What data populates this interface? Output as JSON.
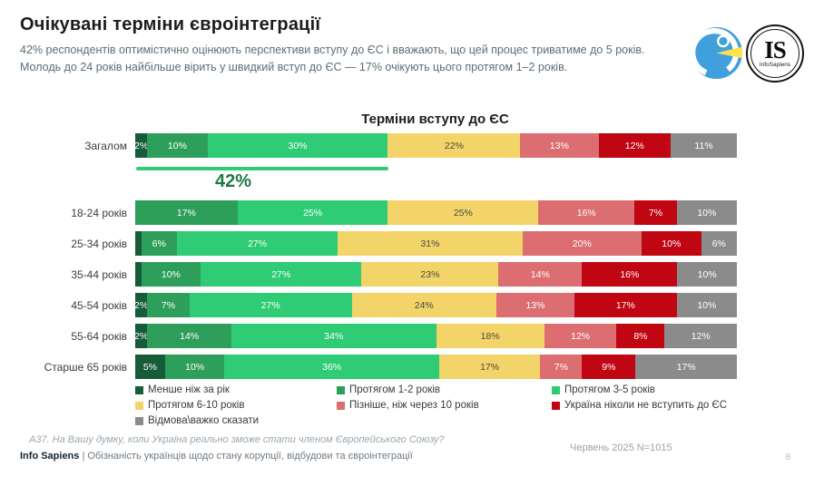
{
  "header": {
    "title": "Очікувані терміни євроінтеграції",
    "subtitle": "42% респондентів оптимістично оцінюють перспективи вступу до ЄС і вважають, що цей процес триватиме до 5 років. Молодь до 24 років найбільше вірить у швидкий вступ до ЄС — 17% очікують цього протягом 1–2 років."
  },
  "logos": {
    "is_initials": "IS",
    "is_name": "InfoSapiens"
  },
  "chart_data": {
    "type": "bar",
    "stacked": true,
    "orientation": "horizontal",
    "title": "Терміни вступу до ЄС",
    "unit": "%",
    "xlim": [
      0,
      100
    ],
    "legend_position": "bottom",
    "label_min_value": 2,
    "categories": [
      "Загалом",
      "18-24 років",
      "25-34 років",
      "35-44 років",
      "45-54 років",
      "55-64 років",
      "Старше 65 років"
    ],
    "series": [
      {
        "name": "Менше ніж за рік",
        "color": "#175C38",
        "label_color": "#ffffff",
        "values": [
          2,
          0,
          1,
          1,
          2,
          2,
          5
        ]
      },
      {
        "name": "Протягом 1-2 років",
        "color": "#2E9E5B",
        "label_color": "#ffffff",
        "values": [
          10,
          17,
          6,
          10,
          7,
          14,
          10
        ]
      },
      {
        "name": "Протягом 3-5 років",
        "color": "#2FCC75",
        "label_color": "#ffffff",
        "values": [
          30,
          25,
          27,
          27,
          27,
          34,
          36
        ]
      },
      {
        "name": "Протягом 6-10 років",
        "color": "#F2D469",
        "label_color": "#4a4a42",
        "values": [
          22,
          25,
          31,
          23,
          24,
          18,
          17
        ]
      },
      {
        "name": "Пізніше, ніж через 10 років",
        "color": "#DC6E72",
        "label_color": "#ffffff",
        "values": [
          13,
          16,
          20,
          14,
          13,
          12,
          7
        ]
      },
      {
        "name": "Україна ніколи не вступить до ЄС",
        "color": "#C00612",
        "label_color": "#ffffff",
        "values": [
          12,
          7,
          10,
          16,
          17,
          8,
          9
        ]
      },
      {
        "name": "Відмова\\важко сказати",
        "color": "#8B8B8B",
        "label_color": "#ffffff",
        "values": [
          11,
          10,
          6,
          10,
          10,
          12,
          17
        ]
      }
    ],
    "annotation": {
      "category": "Загалом",
      "label": "42%",
      "span_percent": 42,
      "line_color": "#2FCC75",
      "text_color": "#1E7A45"
    }
  },
  "footer": {
    "question": "А37. На Вашу думку, коли Україна реально зможе стати членом Європейського Союзу?",
    "survey_meta": "Червень 2025 N=1015",
    "source_brand": "Info Sapiens",
    "separator": "|",
    "source_text": "Обізнаність українців щодо стану корупції, відбудови та євроінтеграції",
    "page_number": "8"
  }
}
